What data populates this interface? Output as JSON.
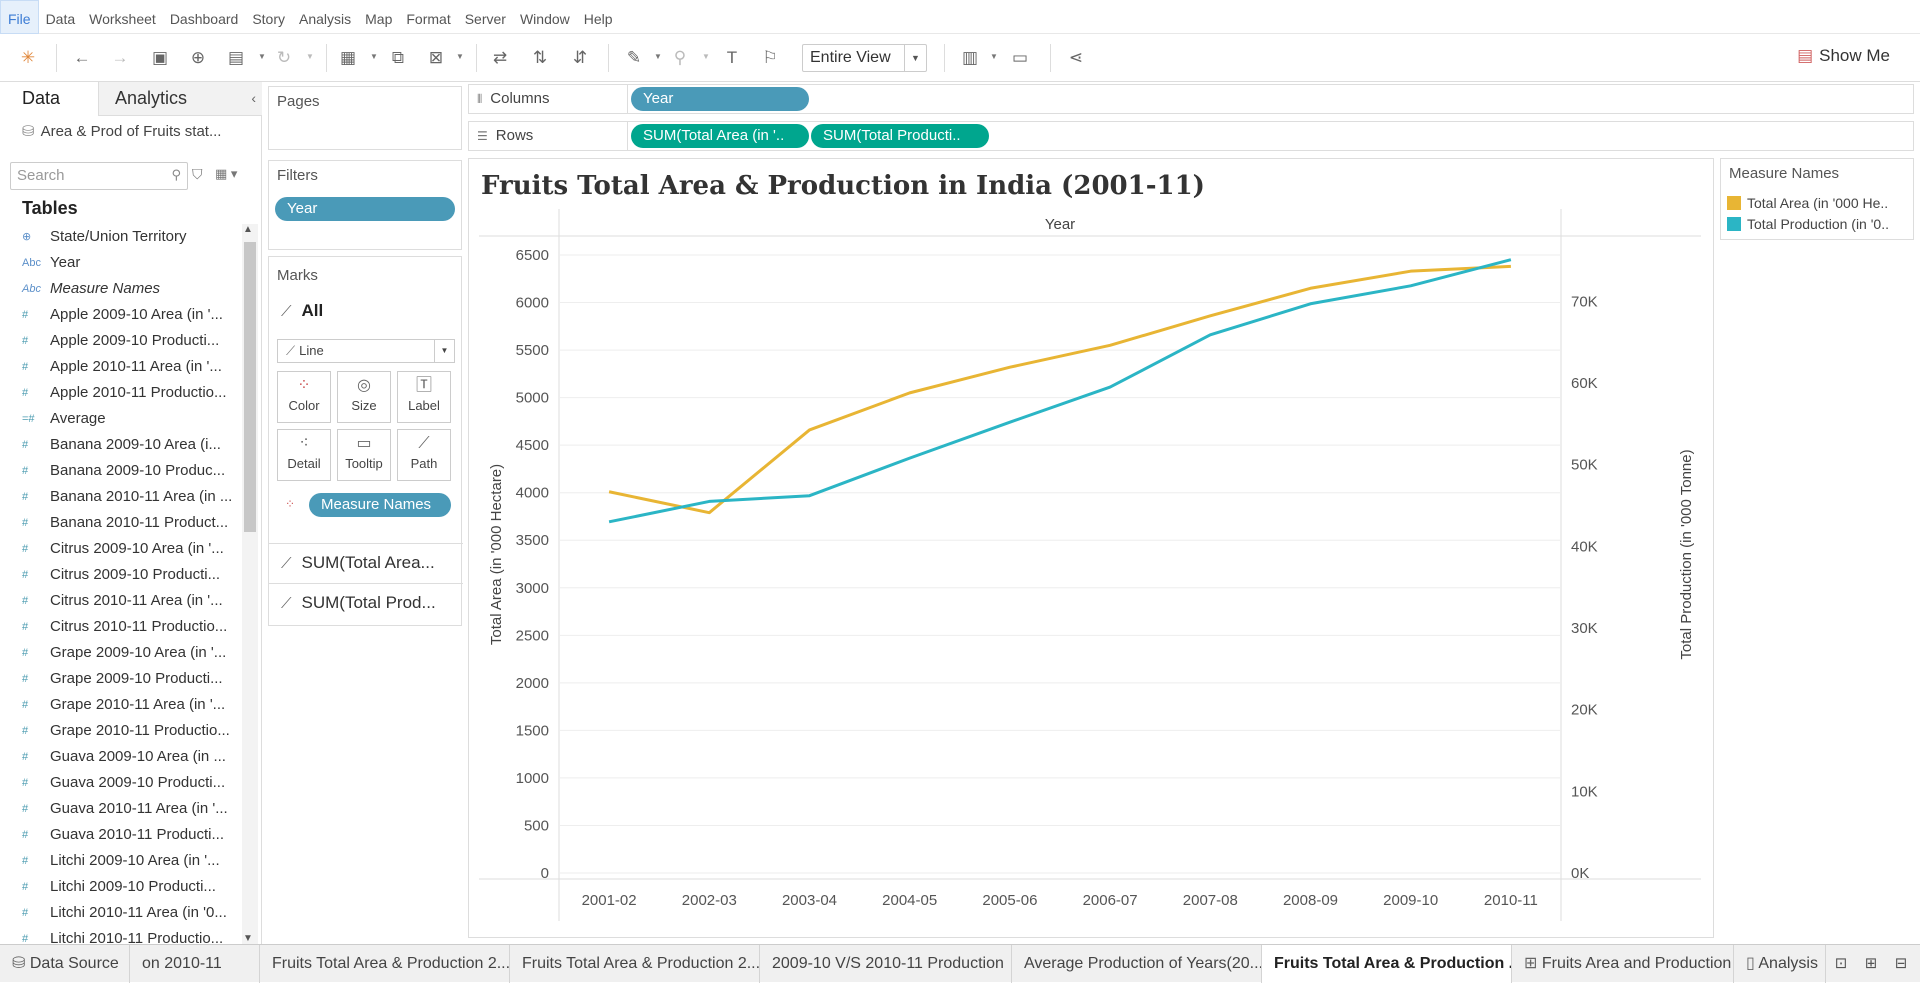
{
  "menu": [
    "File",
    "Data",
    "Worksheet",
    "Dashboard",
    "Story",
    "Analysis",
    "Map",
    "Format",
    "Server",
    "Window",
    "Help"
  ],
  "toolbar": {
    "fit_label": "Entire View",
    "show_me": "Show Me"
  },
  "datapane": {
    "tab_data": "Data",
    "tab_analytics": "Analytics",
    "datasource": "Area & Prod of Fruits stat...",
    "search_placeholder": "Search",
    "tables_header": "Tables",
    "fields": [
      {
        "name": "State/Union Territory",
        "type": "geo"
      },
      {
        "name": "Year",
        "type": "abc"
      },
      {
        "name": "Measure Names",
        "type": "abc"
      },
      {
        "name": "Apple 2009-10 Area (in '...",
        "type": "num"
      },
      {
        "name": "Apple 2009-10 Producti...",
        "type": "num"
      },
      {
        "name": "Apple 2010-11 Area (in '...",
        "type": "num"
      },
      {
        "name": "Apple 2010-11 Productio...",
        "type": "num"
      },
      {
        "name": "Average",
        "type": "calc"
      },
      {
        "name": "Banana 2009-10 Area (i...",
        "type": "num"
      },
      {
        "name": "Banana 2009-10 Produc...",
        "type": "num"
      },
      {
        "name": "Banana 2010-11 Area (in ...",
        "type": "num"
      },
      {
        "name": "Banana 2010-11 Product...",
        "type": "num"
      },
      {
        "name": "Citrus 2009-10 Area (in '...",
        "type": "num"
      },
      {
        "name": "Citrus 2009-10 Producti...",
        "type": "num"
      },
      {
        "name": "Citrus 2010-11 Area (in '...",
        "type": "num"
      },
      {
        "name": "Citrus 2010-11 Productio...",
        "type": "num"
      },
      {
        "name": "Grape 2009-10 Area (in '...",
        "type": "num"
      },
      {
        "name": "Grape 2009-10 Producti...",
        "type": "num"
      },
      {
        "name": "Grape 2010-11 Area (in '...",
        "type": "num"
      },
      {
        "name": "Grape 2010-11 Productio...",
        "type": "num"
      },
      {
        "name": "Guava 2009-10 Area (in ...",
        "type": "num"
      },
      {
        "name": "Guava 2009-10 Producti...",
        "type": "num"
      },
      {
        "name": "Guava 2010-11 Area (in '...",
        "type": "num"
      },
      {
        "name": "Guava 2010-11 Producti...",
        "type": "num"
      },
      {
        "name": "Litchi 2009-10 Area (in '...",
        "type": "num"
      },
      {
        "name": "Litchi 2009-10 Producti...",
        "type": "num"
      },
      {
        "name": "Litchi 2010-11 Area (in '0...",
        "type": "num"
      },
      {
        "name": "Litchi 2010-11 Productio...",
        "type": "num"
      }
    ]
  },
  "pages": {
    "title": "Pages"
  },
  "filters": {
    "title": "Filters",
    "pill": "Year"
  },
  "marks": {
    "title": "Marks",
    "all": "All",
    "mark_type": "Line",
    "buttons": [
      "Color",
      "Size",
      "Label",
      "Detail",
      "Tooltip",
      "Path"
    ],
    "measure_names_pill": "Measure Names",
    "sum1": "SUM(Total Area...",
    "sum2": "SUM(Total Prod..."
  },
  "shelves": {
    "columns_label": "Columns",
    "rows_label": "Rows",
    "columns_pill": "Year",
    "rows_pill1": "SUM(Total Area (in '..",
    "rows_pill2": "SUM(Total Producti.."
  },
  "view": {
    "title": "Fruits Total Area & Production in India (2001-11)"
  },
  "legend": {
    "title": "Measure Names",
    "items": [
      "Total Area (in '000 He..",
      "Total Production (in '0.."
    ],
    "colors": [
      "#e8b534",
      "#2bb5c5"
    ]
  },
  "chart_data": {
    "type": "line",
    "title": "Fruits Total Area & Production in India (2001-11)",
    "xlabel": "Year",
    "categories": [
      "2001-02",
      "2002-03",
      "2003-04",
      "2004-05",
      "2005-06",
      "2006-07",
      "2007-08",
      "2008-09",
      "2009-10",
      "2010-11"
    ],
    "ylabel": "Total Area (in '000 Hectare)",
    "y2label": "Total Production (in '000 Tonne)",
    "ylim": [
      0,
      6700
    ],
    "y2lim": [
      0,
      78000
    ],
    "yticks": [
      0,
      500,
      1000,
      1500,
      2000,
      2500,
      3000,
      3500,
      4000,
      4500,
      5000,
      5500,
      6000,
      6500
    ],
    "y2ticks": [
      0,
      10000,
      20000,
      30000,
      40000,
      50000,
      60000,
      70000
    ],
    "y2ticklabels": [
      "0K",
      "10K",
      "20K",
      "30K",
      "40K",
      "50K",
      "60K",
      "70K"
    ],
    "series": [
      {
        "name": "Total Area (in '000 He..",
        "axis": "left",
        "color": "#e8b534",
        "values": [
          4010,
          3790,
          4660,
          5050,
          5320,
          5550,
          5860,
          6150,
          6330,
          6380
        ]
      },
      {
        "name": "Total Production (in '0..",
        "axis": "right",
        "color": "#2bb5c5",
        "values": [
          43000,
          45500,
          46200,
          50800,
          55200,
          59500,
          65900,
          69700,
          71900,
          75100
        ]
      }
    ],
    "grid": true
  },
  "tabs": [
    {
      "label": "Data Source",
      "icon": "database-icon"
    },
    {
      "label": "on 2010-11"
    },
    {
      "label": "Fruits Total Area & Production 2..."
    },
    {
      "label": "Fruits Total Area & Production 2..."
    },
    {
      "label": "2009-10 V/S 2010-11 Production"
    },
    {
      "label": "Average Production of Years(20..."
    },
    {
      "label": "Fruits Total Area & Production ...",
      "active": true
    },
    {
      "label": "Fruits Area and Production",
      "icon": "dashboard-icon"
    },
    {
      "label": "Analysis",
      "icon": "story-icon"
    }
  ]
}
